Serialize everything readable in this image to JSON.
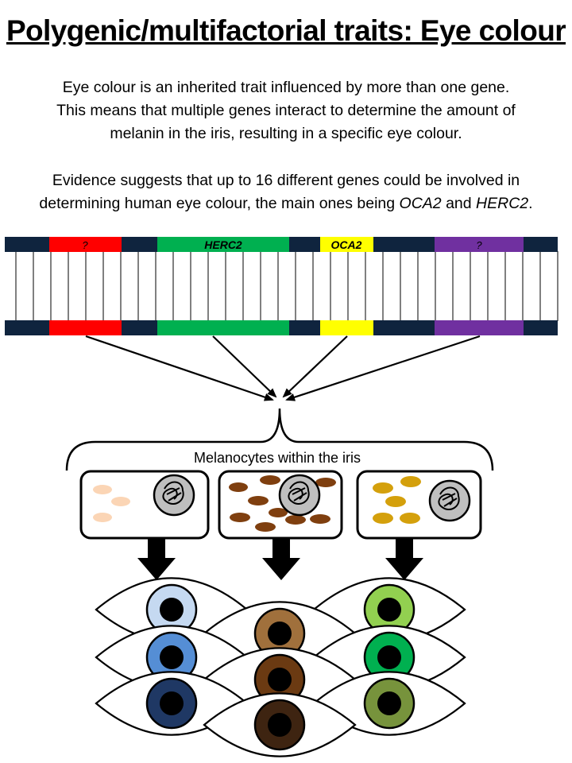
{
  "title": "Polygenic/multifactorial traits: Eye colour",
  "paragraph1": {
    "line1": "Eye colour is an inherited trait influenced by more than one gene.",
    "line2": "This means that multiple genes interact to determine the amount of",
    "line3": "melanin in the iris, resulting in a specific eye colour."
  },
  "paragraph2": {
    "line1": "Evidence suggests that up to 16 different genes could be involved in",
    "line2_start": "determining human eye colour, the main ones being ",
    "gene_a": "OCA2",
    "conj": " and ",
    "gene_b": "HERC2",
    "end": "."
  },
  "genes": [
    {
      "label": "?",
      "color": "#ff0000"
    },
    {
      "label": "HERC2",
      "color": "#00b050"
    },
    {
      "label": "OCA2",
      "color": "#ffff00"
    },
    {
      "label": "?",
      "color": "#7030a0"
    }
  ],
  "dna_backbone_color": "#0f243e",
  "melanocytes_label": "Melanocytes within the iris",
  "melanin_colors": {
    "light": "#fbd5b5",
    "dark": "#7f3f0f",
    "amber": "#d4a00c"
  },
  "iris_colors": {
    "blue_column": [
      "#c5d9f1",
      "#558ed5",
      "#1f3864"
    ],
    "brown_column": [
      "#a0703c",
      "#6b3a12",
      "#3e2411"
    ],
    "green_column": [
      "#92d050",
      "#00b050",
      "#77933c"
    ]
  }
}
